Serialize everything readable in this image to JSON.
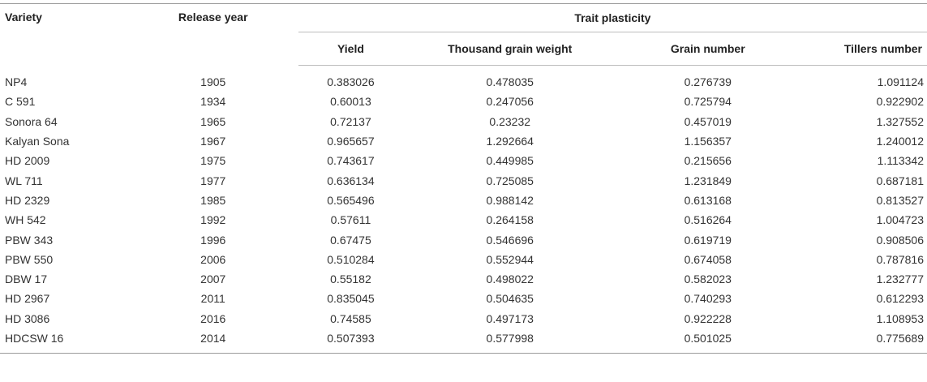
{
  "table": {
    "headers": {
      "variety": "Variety",
      "release_year": "Release year",
      "group": "Trait plasticity",
      "yield": "Yield",
      "thousand_grain_weight": "Thousand grain weight",
      "grain_number": "Grain number",
      "tillers_number": "Tillers number"
    },
    "rows": [
      [
        "NP4",
        "1905",
        "0.383026",
        "0.478035",
        "0.276739",
        "1.091124"
      ],
      [
        "C 591",
        "1934",
        "0.60013",
        "0.247056",
        "0.725794",
        "0.922902"
      ],
      [
        "Sonora 64",
        "1965",
        "0.72137",
        "0.23232",
        "0.457019",
        "1.327552"
      ],
      [
        "Kalyan Sona",
        "1967",
        "0.965657",
        "1.292664",
        "1.156357",
        "1.240012"
      ],
      [
        "HD 2009",
        "1975",
        "0.743617",
        "0.449985",
        "0.215656",
        "1.113342"
      ],
      [
        "WL 711",
        "1977",
        "0.636134",
        "0.725085",
        "1.231849",
        "0.687181"
      ],
      [
        "HD 2329",
        "1985",
        "0.565496",
        "0.988142",
        "0.613168",
        "0.813527"
      ],
      [
        "WH 542",
        "1992",
        "0.57611",
        "0.264158",
        "0.516264",
        "1.004723"
      ],
      [
        "PBW 343",
        "1996",
        "0.67475",
        "0.546696",
        "0.619719",
        "0.908506"
      ],
      [
        "PBW 550",
        "2006",
        "0.510284",
        "0.552944",
        "0.674058",
        "0.787816"
      ],
      [
        "DBW 17",
        "2007",
        "0.55182",
        "0.498022",
        "0.582023",
        "1.232777"
      ],
      [
        "HD 2967",
        "2011",
        "0.835045",
        "0.504635",
        "0.740293",
        "0.612293"
      ],
      [
        "HD 3086",
        "2016",
        "0.74585",
        "0.497173",
        "0.922228",
        "1.108953"
      ],
      [
        "HDCSW 16",
        "2014",
        "0.507393",
        "0.577998",
        "0.501025",
        "0.775689"
      ]
    ]
  }
}
